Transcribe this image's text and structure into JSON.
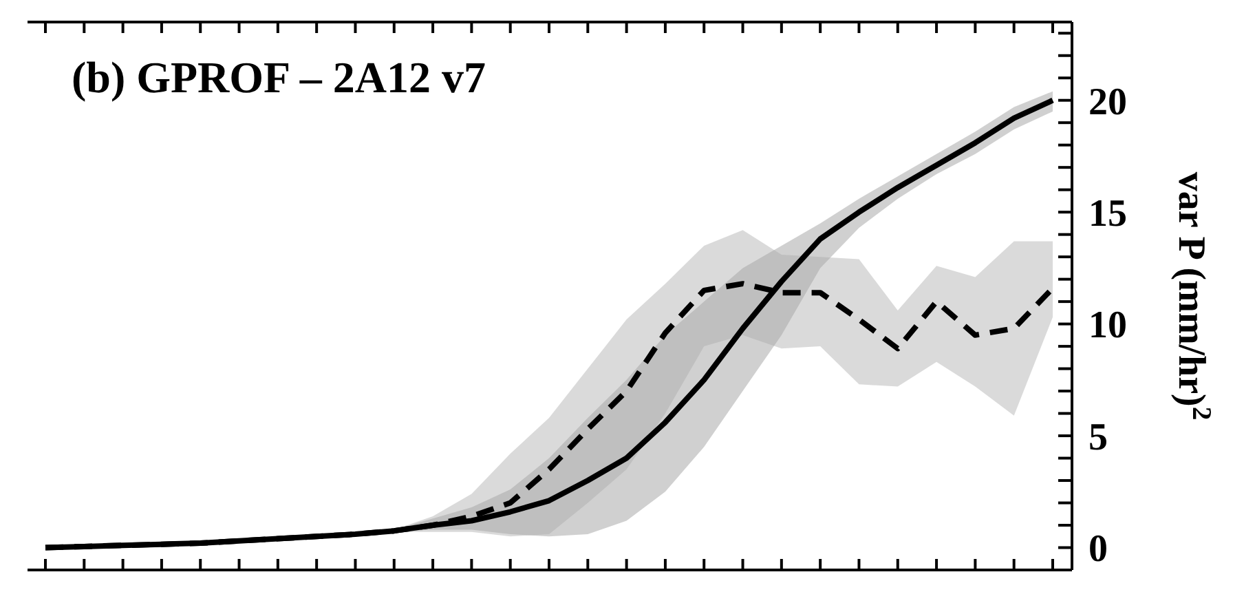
{
  "chart_data": {
    "type": "line",
    "title": "(b) GPROF – 2A12 v7",
    "ylabel": "var P (mm/hr)$^{2}$",
    "categories": [
      null,
      null,
      null,
      null,
      null,
      null,
      null,
      null,
      null,
      null,
      null,
      null,
      null,
      null,
      null,
      null,
      null,
      null,
      null,
      null,
      null,
      null,
      null,
      null,
      null,
      null,
      null
    ],
    "series": [
      {
        "color": "#000000",
        "line_style": "solid",
        "values": [
          0,
          0.05,
          0.1,
          0.15,
          0.2,
          0.3,
          0.4,
          0.5,
          0.6,
          0.75,
          1.0,
          1.2,
          1.6,
          2.1,
          3.0,
          4.0,
          5.6,
          7.5,
          9.8,
          11.9,
          13.8,
          15.0,
          16.1,
          17.1,
          18.1,
          19.2,
          20.0
        ],
        "lower": [
          0,
          0.05,
          0.1,
          0.15,
          0.2,
          0.3,
          0.4,
          0.5,
          0.6,
          0.7,
          0.8,
          0.8,
          0.6,
          0.5,
          0.6,
          1.2,
          2.5,
          4.5,
          7.0,
          9.5,
          12.5,
          14.3,
          15.6,
          16.7,
          17.6,
          18.7,
          19.5
        ],
        "upper": [
          0,
          0.05,
          0.1,
          0.15,
          0.2,
          0.3,
          0.4,
          0.5,
          0.6,
          0.8,
          1.3,
          1.8,
          2.6,
          4.0,
          5.8,
          7.5,
          9.5,
          11.0,
          12.5,
          13.5,
          14.5,
          15.6,
          16.6,
          17.6,
          18.6,
          19.7,
          20.4
        ]
      },
      {
        "color": "#000000",
        "line_style": "dashed",
        "values": [
          0,
          0.05,
          0.1,
          0.15,
          0.2,
          0.3,
          0.4,
          0.5,
          0.6,
          0.75,
          1.0,
          1.4,
          2.0,
          3.5,
          5.3,
          7.0,
          9.6,
          11.5,
          11.8,
          11.4,
          11.4,
          10.2,
          8.9,
          11.0,
          9.5,
          9.8,
          11.6
        ],
        "lower": [
          0,
          0.05,
          0.1,
          0.15,
          0.2,
          0.3,
          0.4,
          0.5,
          0.6,
          0.7,
          0.7,
          0.7,
          0.5,
          0.6,
          2.0,
          3.5,
          6.0,
          9.0,
          9.5,
          8.9,
          9.0,
          7.3,
          7.2,
          8.3,
          7.2,
          5.9,
          10.3
        ],
        "upper": [
          0,
          0.05,
          0.1,
          0.15,
          0.2,
          0.3,
          0.4,
          0.5,
          0.6,
          0.8,
          1.4,
          2.4,
          4.2,
          5.8,
          8.0,
          10.2,
          11.8,
          13.5,
          14.2,
          13.1,
          13.0,
          12.9,
          10.6,
          12.6,
          12.1,
          13.7,
          13.7
        ]
      }
    ],
    "ylim": [
      -1,
      23.5
    ],
    "yticks": [
      0,
      {
        "value": 1,
        "label": null
      },
      {
        "value": 2,
        "label": null
      },
      {
        "value": 3,
        "label": null
      },
      {
        "value": 4,
        "label": null
      },
      5,
      {
        "value": 6,
        "label": null
      },
      {
        "value": 7,
        "label": null
      },
      {
        "value": 8,
        "label": null
      },
      {
        "value": 9,
        "label": null
      },
      10,
      {
        "value": 11,
        "label": null
      },
      {
        "value": 12,
        "label": null
      },
      {
        "value": 13,
        "label": null
      },
      {
        "value": 14,
        "label": null
      },
      15,
      {
        "value": 16,
        "label": null
      },
      {
        "value": 17,
        "label": null
      },
      {
        "value": 18,
        "label": null
      },
      {
        "value": 19,
        "label": null
      },
      20,
      {
        "value": 21,
        "label": null
      },
      {
        "value": 22,
        "label": null
      },
      {
        "value": 23,
        "label": null
      }
    ],
    "tick_labels": "y",
    "marker": "none"
  }
}
